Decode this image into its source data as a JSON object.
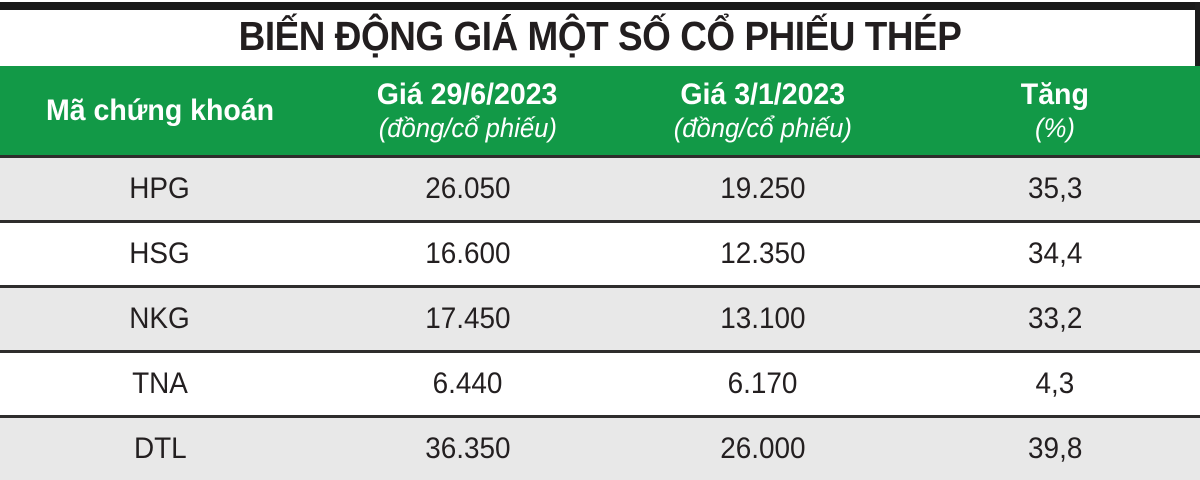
{
  "title": "BIẾN ĐỘNG GIÁ MỘT SỐ CỔ PHIẾU THÉP",
  "colors": {
    "header_green": "#129947",
    "row_alt_gray": "#e8e8e8",
    "separator": "#2e2d2c",
    "top_bar": "#191919",
    "text": "#231f20",
    "header_text": "#ffffff"
  },
  "table": {
    "columns": [
      {
        "label": "Mã chứng khoán",
        "sublabel": ""
      },
      {
        "label": "Giá 29/6/2023",
        "sublabel": "(đồng/cổ phiếu)"
      },
      {
        "label": "Giá 3/1/2023",
        "sublabel": "(đồng/cổ phiếu)"
      },
      {
        "label": "Tăng",
        "sublabel": "(%)"
      }
    ],
    "rows": [
      {
        "ticker": "HPG",
        "price_new": "26.050",
        "price_old": "19.250",
        "change": "35,3"
      },
      {
        "ticker": "HSG",
        "price_new": "16.600",
        "price_old": "12.350",
        "change": "34,4"
      },
      {
        "ticker": "NKG",
        "price_new": "17.450",
        "price_old": "13.100",
        "change": "33,2"
      },
      {
        "ticker": "TNA",
        "price_new": "6.440",
        "price_old": "6.170",
        "change": "4,3"
      },
      {
        "ticker": "DTL",
        "price_new": "36.350",
        "price_old": "26.000",
        "change": "39,8"
      }
    ]
  },
  "chart_data": {
    "type": "table",
    "title": "BIẾN ĐỘNG GIÁ MỘT SỐ CỔ PHIẾU THÉP",
    "columns": [
      "Mã chứng khoán",
      "Giá 29/6/2023 (đồng/cổ phiếu)",
      "Giá 3/1/2023 (đồng/cổ phiếu)",
      "Tăng (%)"
    ],
    "rows": [
      [
        "HPG",
        26050,
        19250,
        35.3
      ],
      [
        "HSG",
        16600,
        12350,
        34.4
      ],
      [
        "NKG",
        17450,
        13100,
        33.2
      ],
      [
        "TNA",
        6440,
        6170,
        4.3
      ],
      [
        "DTL",
        36350,
        26000,
        39.8
      ]
    ]
  }
}
